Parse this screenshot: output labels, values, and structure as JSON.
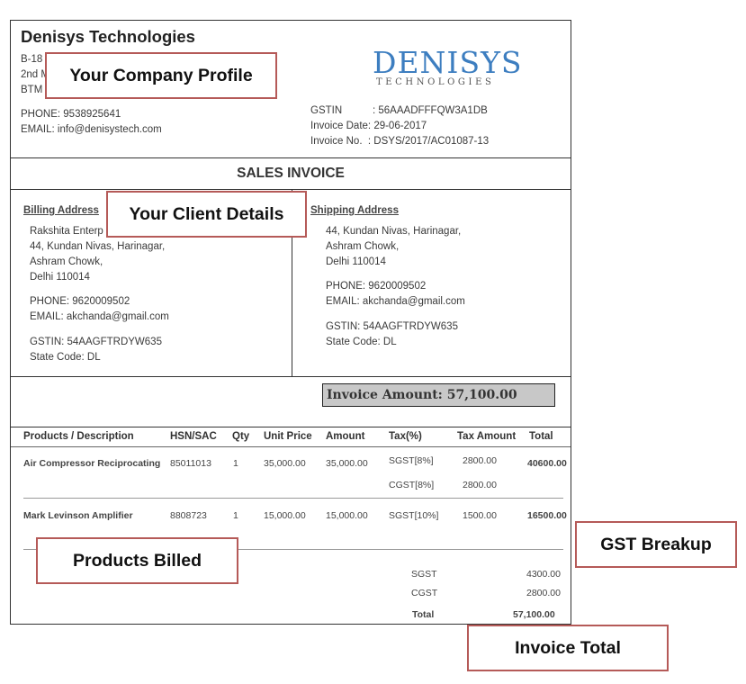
{
  "company": {
    "name": "Denisys Technologies",
    "address_lines": [
      "B-18",
      "2nd M",
      "BTM"
    ],
    "phone": "PHONE: 9538925641",
    "email": "EMAIL: info@denisystech.com",
    "logo_text": "DENISYS",
    "logo_subtext": "TECHNOLOGIES"
  },
  "invoice_meta": {
    "gstin_label": "GSTIN",
    "gstin_value": ": 56AAADFFFQW3A1DB",
    "date": "Invoice Date: 29-06-2017",
    "number": "Invoice No.  : DSYS/2017/AC01087-13"
  },
  "title": "SALES INVOICE",
  "billing": {
    "heading": "Billing Address",
    "lines": [
      "Rakshita Enterp",
      "44, Kundan Nivas, Harinagar,",
      "Ashram Chowk,",
      "Delhi 110014"
    ],
    "phone": "PHONE: 9620009502",
    "email": "EMAIL: akchanda@gmail.com",
    "gstin": "GSTIN: 54AAGFTRDYW635",
    "state": "State Code: DL"
  },
  "shipping": {
    "heading": "Shipping Address",
    "lines": [
      "44, Kundan Nivas, Harinagar,",
      "Ashram Chowk,",
      "Delhi 110014"
    ],
    "phone": "PHONE: 9620009502",
    "email": "EMAIL: akchanda@gmail.com",
    "gstin": "GSTIN: 54AAGFTRDYW635",
    "state": "State Code: DL"
  },
  "invoice_amount": "Invoice Amount: 57,100.00",
  "table": {
    "headers": [
      "Products / Description",
      "HSN/SAC",
      "Qty",
      "Unit Price",
      "Amount",
      "Tax(%)",
      "Tax Amount",
      "Total"
    ],
    "rows": [
      {
        "product": "Air Compressor Reciprocating",
        "hsn": "85011013",
        "qty": "1",
        "unit_price": "35,000.00",
        "amount": "35,000.00",
        "taxes": [
          {
            "type": "SGST[8%]",
            "amount": "2800.00"
          },
          {
            "type": "CGST[8%]",
            "amount": "2800.00"
          }
        ],
        "total": "40600.00"
      },
      {
        "product": "Mark Levinson Amplifier",
        "hsn": "8808723",
        "qty": "1",
        "unit_price": "15,000.00",
        "amount": "15,000.00",
        "taxes": [
          {
            "type": "SGST[10%]",
            "amount": "1500.00"
          }
        ],
        "total": "16500.00"
      }
    ]
  },
  "summary": {
    "sgst_label": "SGST",
    "sgst_value": "4300.00",
    "cgst_label": "CGST",
    "cgst_value": "2800.00",
    "total_label": "Total",
    "total_value": "57,100.00"
  },
  "callouts": {
    "company_profile": "Your Company Profile",
    "client_details": "Your Client Details",
    "products_billed": "Products Billed",
    "gst_breakup": "GST Breakup",
    "invoice_total": "Invoice Total"
  },
  "colors": {
    "logo_blue": "#3d7ec0",
    "callout_border": "#b55a58",
    "amount_box_bg": "#c8c8c8"
  }
}
